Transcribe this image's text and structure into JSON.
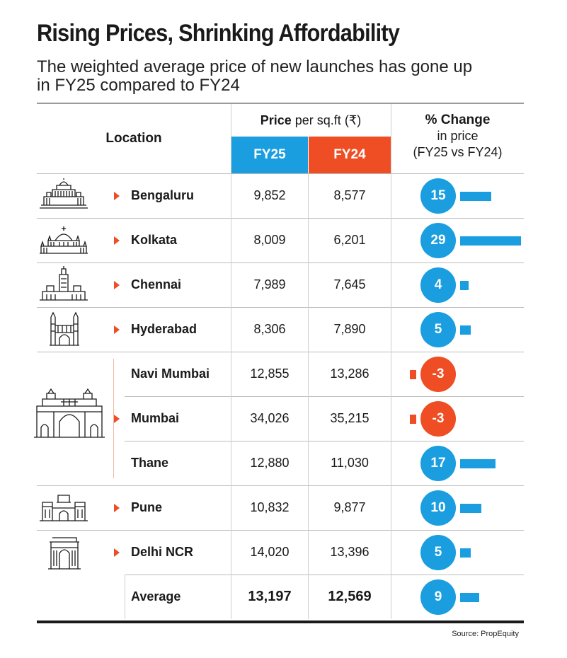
{
  "title": "Rising Prices, Shrinking Affordability",
  "subtitle": "The weighted average price of new launches has gone up in FY25 compared to FY24",
  "header": {
    "location": "Location",
    "price_bold": "Price",
    "price_rest": " per sq.ft (₹)",
    "fy25": "FY25",
    "fy24": "FY24",
    "change_line1": "% Change",
    "change_line2": "in price",
    "change_line3": "(FY25 vs FY24)"
  },
  "colors": {
    "fy25": "#1a9ee0",
    "fy24": "#ef4d24",
    "positive": "#1a9ee0",
    "negative": "#ef4d24"
  },
  "chart_data": {
    "type": "table",
    "columns": [
      "Location",
      "FY25",
      "FY24",
      "% Change"
    ],
    "rows": [
      {
        "location": "Bengaluru",
        "fy25": "9,852",
        "fy24": "8,577",
        "change": 15,
        "icon": "vidhana-soudha-icon"
      },
      {
        "location": "Kolkata",
        "fy25": "8,009",
        "fy24": "6,201",
        "change": 29,
        "icon": "victoria-memorial-icon"
      },
      {
        "location": "Chennai",
        "fy25": "7,989",
        "fy24": "7,645",
        "change": 4,
        "icon": "chennai-central-icon"
      },
      {
        "location": "Hyderabad",
        "fy25": "8,306",
        "fy24": "7,890",
        "change": 5,
        "icon": "charminar-icon"
      },
      {
        "location": "Navi Mumbai",
        "fy25": "12,855",
        "fy24": "13,286",
        "change": -3,
        "icon": "gateway-of-india-icon"
      },
      {
        "location": "Mumbai",
        "fy25": "34,026",
        "fy24": "35,215",
        "change": -3,
        "icon": "gateway-of-india-icon"
      },
      {
        "location": "Thane",
        "fy25": "12,880",
        "fy24": "11,030",
        "change": 17,
        "icon": "gateway-of-india-icon"
      },
      {
        "location": "Pune",
        "fy25": "10,832",
        "fy24": "9,877",
        "change": 10,
        "icon": "shaniwar-wada-icon"
      },
      {
        "location": "Delhi NCR",
        "fy25": "14,020",
        "fy24": "13,396",
        "change": 5,
        "icon": "india-gate-icon"
      }
    ],
    "average": {
      "location": "Average",
      "fy25": "13,197",
      "fy24": "12,569",
      "change": 9
    }
  },
  "source": "Source: PropEquity"
}
